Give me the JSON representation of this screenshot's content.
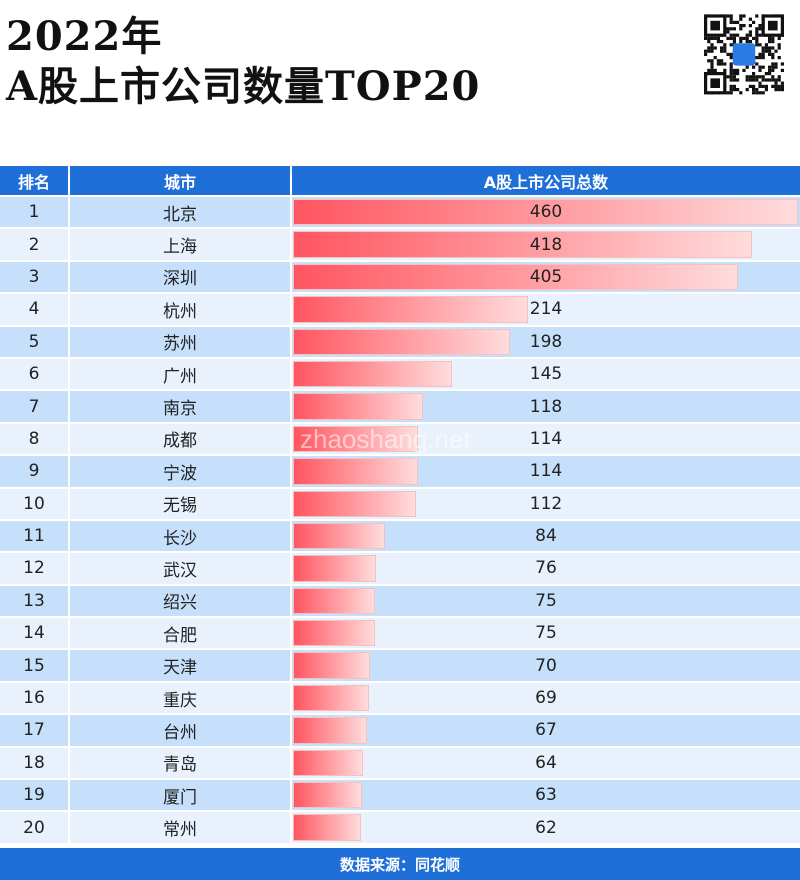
{
  "title": {
    "line1": "2022年",
    "line2": "A股上市公司数量TOP20"
  },
  "watermark": "zhaoshang.net",
  "chart_data": {
    "type": "bar",
    "columns": [
      "排名",
      "城市",
      "A股上市公司总数"
    ],
    "categories": [
      "北京",
      "上海",
      "深圳",
      "杭州",
      "苏州",
      "广州",
      "南京",
      "成都",
      "宁波",
      "无锡",
      "长沙",
      "武汉",
      "绍兴",
      "合肥",
      "天津",
      "重庆",
      "台州",
      "青岛",
      "厦门",
      "常州"
    ],
    "ranks": [
      1,
      2,
      3,
      4,
      5,
      6,
      7,
      8,
      9,
      10,
      11,
      12,
      13,
      14,
      15,
      16,
      17,
      18,
      19,
      20
    ],
    "values": [
      460,
      418,
      405,
      214,
      198,
      145,
      118,
      114,
      114,
      112,
      84,
      76,
      75,
      75,
      70,
      69,
      67,
      64,
      63,
      62
    ],
    "bar_colors": [
      "#ff5560",
      "#ffdcdc"
    ],
    "header_color": "#1f6fd9"
  },
  "footer": "数据来源：同花顺"
}
